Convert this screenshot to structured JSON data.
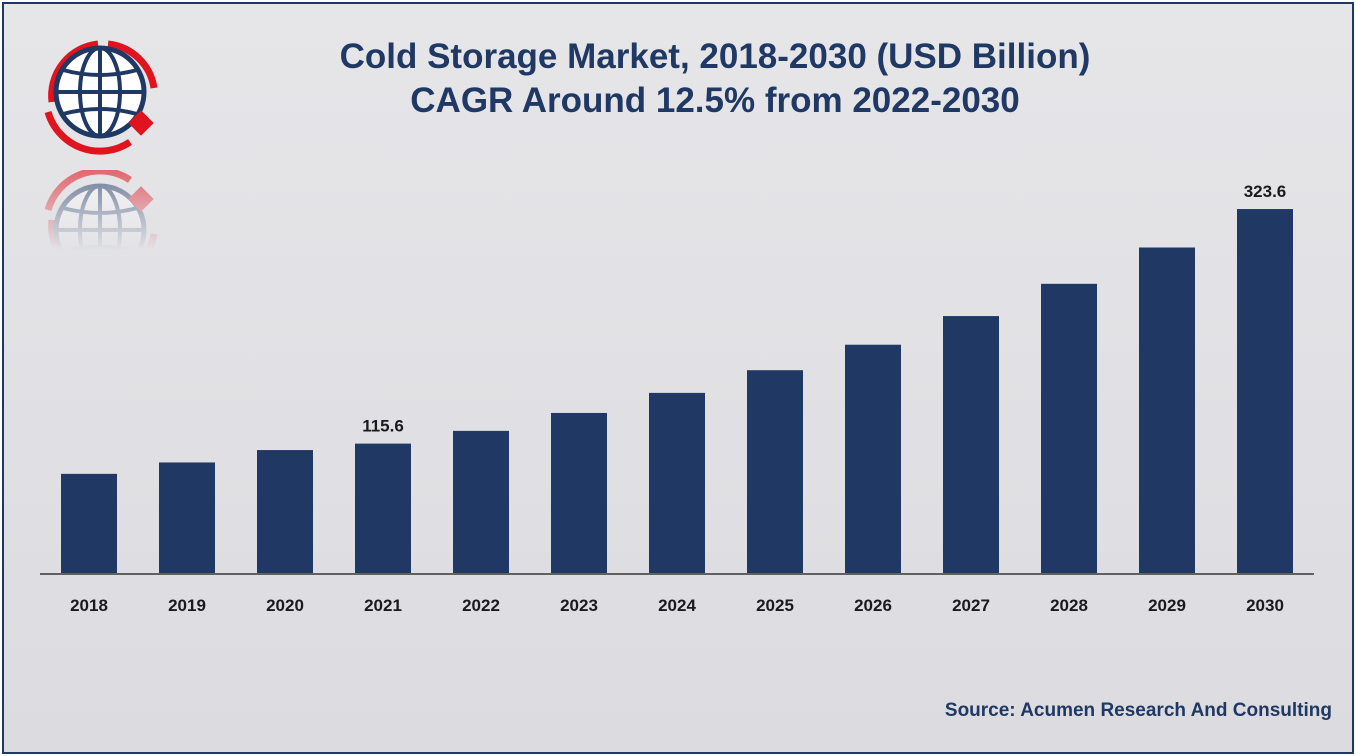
{
  "chart_data": {
    "type": "bar",
    "title": "Cold Storage Market, 2018-2030 (USD Billion)",
    "subtitle": "CAGR Around 12.5% from 2022-2030",
    "categories": [
      "2018",
      "2019",
      "2020",
      "2021",
      "2022",
      "2023",
      "2024",
      "2025",
      "2026",
      "2027",
      "2028",
      "2029",
      "2030"
    ],
    "values": [
      88.8,
      98.9,
      109.9,
      115.6,
      126.9,
      142.8,
      160.6,
      180.7,
      203.3,
      228.7,
      257.3,
      289.5,
      323.6
    ],
    "data_labels": {
      "3": "115.6",
      "12": "323.6"
    },
    "ylim": [
      0,
      360
    ],
    "grid": false,
    "legend": "none",
    "bar_color": "#1f3864",
    "xlabel": "",
    "ylabel": ""
  },
  "source": "Source: Acumen Research And Consulting",
  "colors": {
    "accent": "#1f3864",
    "logo_red": "#e0141e",
    "background": "#e3e3e6"
  },
  "logo": {
    "icon": "globe-logo-icon"
  }
}
